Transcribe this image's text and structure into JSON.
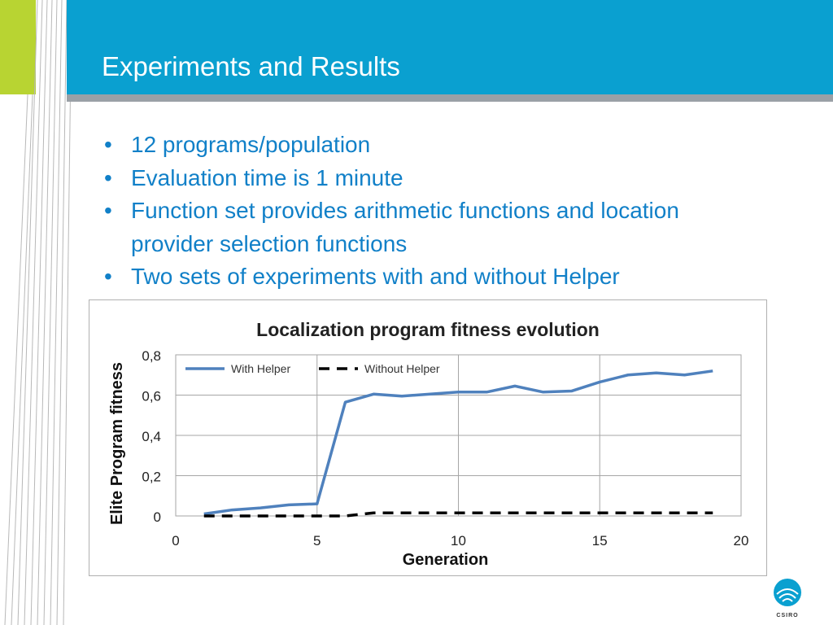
{
  "slide": {
    "title": "Experiments and Results",
    "bullets": [
      "12 programs/population",
      "Evaluation time is 1 minute",
      "Function set provides arithmetic functions and location provider selection functions",
      "Two sets of experiments with and without Helper"
    ],
    "logo_text": "CSIRO",
    "colors": {
      "header": "#0aa0d0",
      "accent_green": "#b8d432",
      "text": "#1180c8"
    }
  },
  "chart_data": {
    "type": "line",
    "title": "Localization program fitness evolution",
    "xlabel": "Generation",
    "ylabel": "Elite Program fitness",
    "xlim": [
      0,
      20
    ],
    "ylim": [
      0,
      0.8
    ],
    "x_ticks": [
      0,
      5,
      10,
      15,
      20
    ],
    "y_ticks": [
      "0",
      "0,2",
      "0,4",
      "0,6",
      "0,8"
    ],
    "y_tick_values": [
      0,
      0.2,
      0.4,
      0.6,
      0.8
    ],
    "grid": true,
    "legend": "top-left",
    "series": [
      {
        "name": "With Helper",
        "color": "#4f81bd",
        "style": "solid",
        "x": [
          1,
          2,
          3,
          4,
          5,
          6,
          7,
          8,
          9,
          10,
          11,
          12,
          13,
          14,
          15,
          16,
          17,
          18,
          19
        ],
        "values": [
          0.01,
          0.03,
          0.04,
          0.055,
          0.06,
          0.565,
          0.605,
          0.595,
          0.605,
          0.615,
          0.615,
          0.645,
          0.615,
          0.62,
          0.665,
          0.7,
          0.71,
          0.7,
          0.72
        ]
      },
      {
        "name": "Without Helper",
        "color": "#000000",
        "style": "dashed",
        "x": [
          1,
          2,
          3,
          4,
          5,
          6,
          7,
          8,
          9,
          10,
          11,
          12,
          13,
          14,
          15,
          16,
          17,
          18,
          19
        ],
        "values": [
          0,
          0,
          0,
          0,
          0,
          0,
          0.015,
          0.015,
          0.015,
          0.015,
          0.015,
          0.015,
          0.015,
          0.015,
          0.015,
          0.015,
          0.015,
          0.015,
          0.015
        ]
      }
    ]
  }
}
